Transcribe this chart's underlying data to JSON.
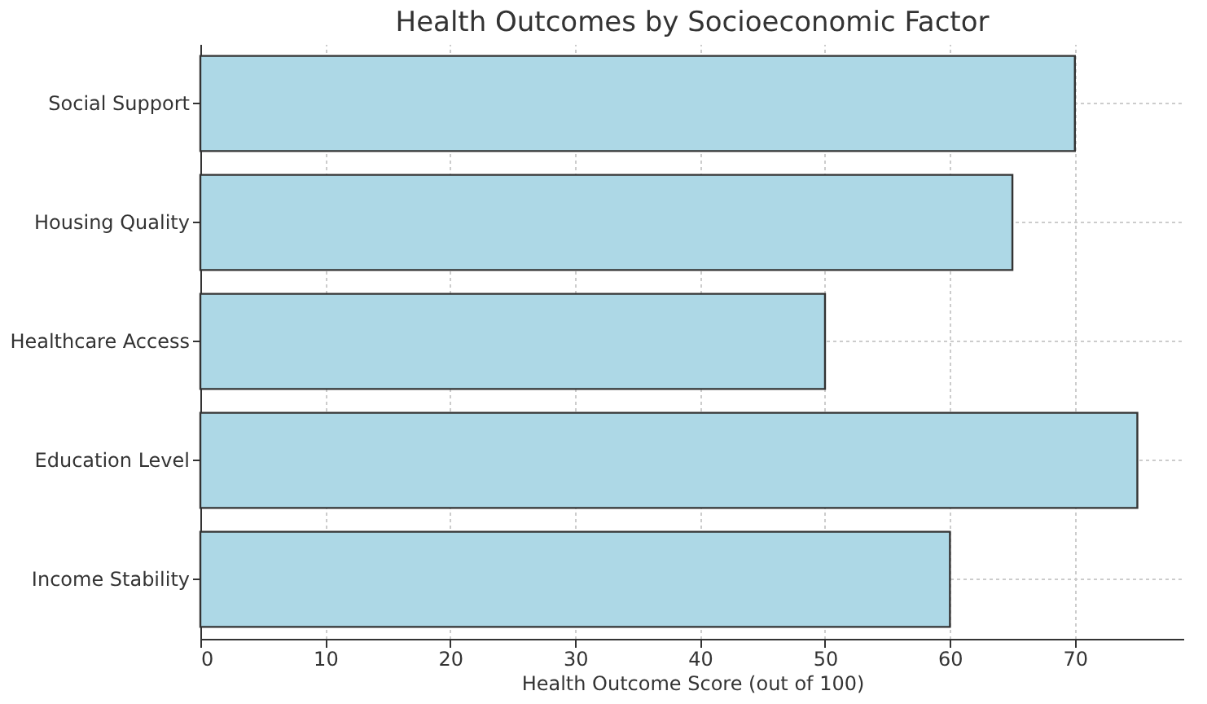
{
  "chart_data": {
    "type": "bar",
    "orientation": "horizontal",
    "title": "Health Outcomes by Socioeconomic Factor",
    "xlabel": "Health Outcome Score (out of 100)",
    "categories": [
      "Social Support",
      "Housing Quality",
      "Healthcare Access",
      "Education Level",
      "Income Stability"
    ],
    "values": [
      70,
      65,
      50,
      75,
      60
    ],
    "color": "#add8e6",
    "xlim": [
      0,
      78.75
    ],
    "xticks": [
      0,
      10,
      20,
      30,
      40,
      50,
      60,
      70
    ],
    "grid": true
  }
}
